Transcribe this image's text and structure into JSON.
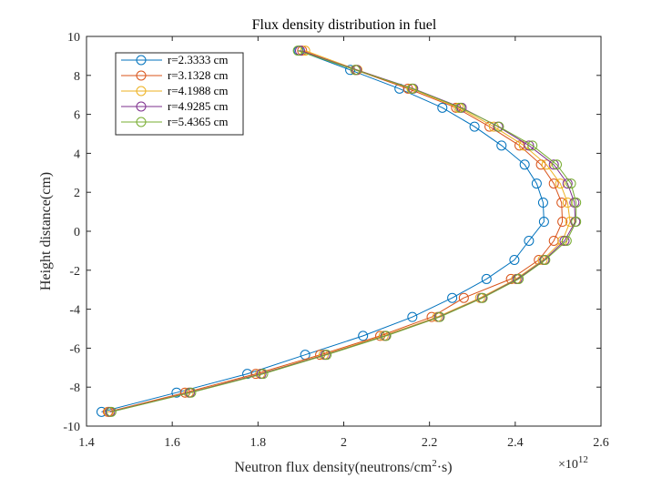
{
  "chart_data": {
    "type": "line",
    "title": "Flux density distribution in fuel",
    "xlabel": "Neutron flux density(neutrons/cm2·s)",
    "xlabel_parts": {
      "pre": "Neutron flux density(neutrons/cm",
      "sup": "2",
      "post": "·s)"
    },
    "ylabel": "Height distance(cm)",
    "x_multiplier": {
      "base": "×10",
      "exp": "12"
    },
    "xlim": [
      1.4,
      2.6
    ],
    "ylim": [
      -10,
      10
    ],
    "xticks": [
      "1.4",
      "1.6",
      "1.8",
      "2",
      "2.2",
      "2.4",
      "2.6"
    ],
    "yticks": [
      "10",
      "8",
      "6",
      "4",
      "2",
      "0",
      "-2",
      "-4",
      "-6",
      "-8",
      "-10"
    ],
    "grid": false,
    "legend_position": "top-left",
    "y": [
      9.27,
      8.28,
      7.32,
      6.34,
      5.37,
      4.4,
      3.42,
      2.45,
      1.47,
      0.49,
      -0.49,
      -1.47,
      -2.45,
      -3.42,
      -4.4,
      -5.37,
      -6.34,
      -7.32,
      -8.28,
      -9.27
    ],
    "series": [
      {
        "name": "r=2.3333 cm",
        "color": "#0072BD",
        "x": [
          1.895,
          2.015,
          2.13,
          2.23,
          2.305,
          2.368,
          2.422,
          2.45,
          2.465,
          2.467,
          2.432,
          2.398,
          2.333,
          2.253,
          2.16,
          2.045,
          1.91,
          1.775,
          1.61,
          1.435
        ]
      },
      {
        "name": "r=3.1328 cm",
        "color": "#D95319",
        "x": [
          1.903,
          2.027,
          2.15,
          2.262,
          2.34,
          2.41,
          2.46,
          2.49,
          2.508,
          2.51,
          2.49,
          2.455,
          2.39,
          2.28,
          2.205,
          2.085,
          1.945,
          1.795,
          1.63,
          1.45
        ]
      },
      {
        "name": "r=4.1988 cm",
        "color": "#EDB120",
        "x": [
          1.91,
          2.032,
          2.158,
          2.268,
          2.35,
          2.42,
          2.473,
          2.505,
          2.522,
          2.528,
          2.51,
          2.464,
          2.402,
          2.318,
          2.218,
          2.093,
          1.953,
          1.805,
          1.638,
          1.452
        ]
      },
      {
        "name": "r=4.9285 cm",
        "color": "#7E2F8E",
        "x": [
          1.898,
          2.03,
          2.162,
          2.275,
          2.36,
          2.432,
          2.49,
          2.522,
          2.538,
          2.54,
          2.515,
          2.468,
          2.405,
          2.322,
          2.222,
          2.097,
          1.957,
          1.808,
          1.641,
          1.455
        ]
      },
      {
        "name": "r=5.4365 cm",
        "color": "#77AC30",
        "x": [
          1.893,
          2.027,
          2.16,
          2.272,
          2.362,
          2.44,
          2.497,
          2.53,
          2.542,
          2.542,
          2.52,
          2.47,
          2.408,
          2.324,
          2.224,
          2.099,
          1.96,
          1.812,
          1.644,
          1.458
        ]
      }
    ]
  }
}
